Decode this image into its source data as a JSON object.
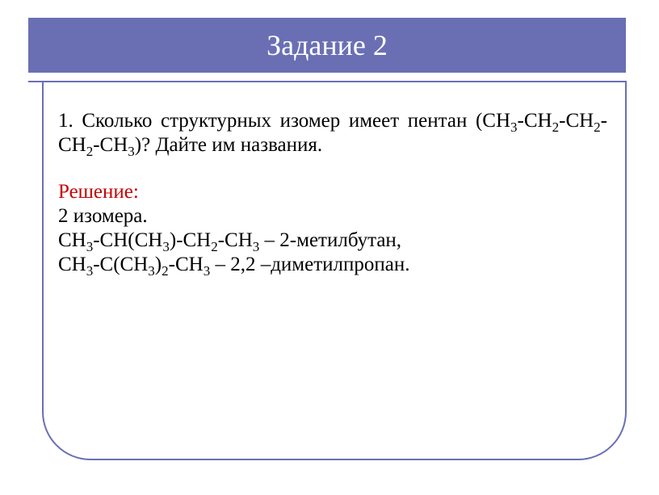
{
  "colors": {
    "banner_bg": "#6a6fb4",
    "banner_text": "#ffffff",
    "frame_border": "#6a6fb4",
    "divider": "#6a6fb4",
    "body_text": "#000000",
    "solution_label": "#c40404",
    "slide_bg": "#ffffff"
  },
  "title": "Задание 2",
  "question": {
    "number": "1.",
    "line1_prefix": "1. Сколько структурных изомер имеет пентан (CH",
    "line1_sub1": "3",
    "line1_mid1": "-CH",
    "line1_sub2": "2",
    "line1_mid2": "-",
    "line2_prefix": "CH",
    "line2_sub1": "2",
    "line2_mid1": "-CH",
    "line2_sub2": "2",
    "line2_mid2": "-CH",
    "line2_sub3": "3",
    "line2_suffix": ")? Дайте им названия."
  },
  "solution": {
    "label": "Решение:",
    "count": "2 изомера.",
    "isomer1": {
      "p1": "CH",
      "s1": "3",
      "p2": "-CH(CH",
      "s2": "3",
      "p3": ")-CH",
      "s3": "2",
      "p4": "-CH",
      "s4": "3",
      "name": "  – 2-метилбутан,"
    },
    "isomer2": {
      "p1": "CH",
      "s1": "3",
      "p2": "-C(CH",
      "s2": "3",
      "p3": ")",
      "s3": "2",
      "p4": "-CH",
      "s4": "3",
      "name": "  – 2,2 –диметилпропан."
    }
  }
}
